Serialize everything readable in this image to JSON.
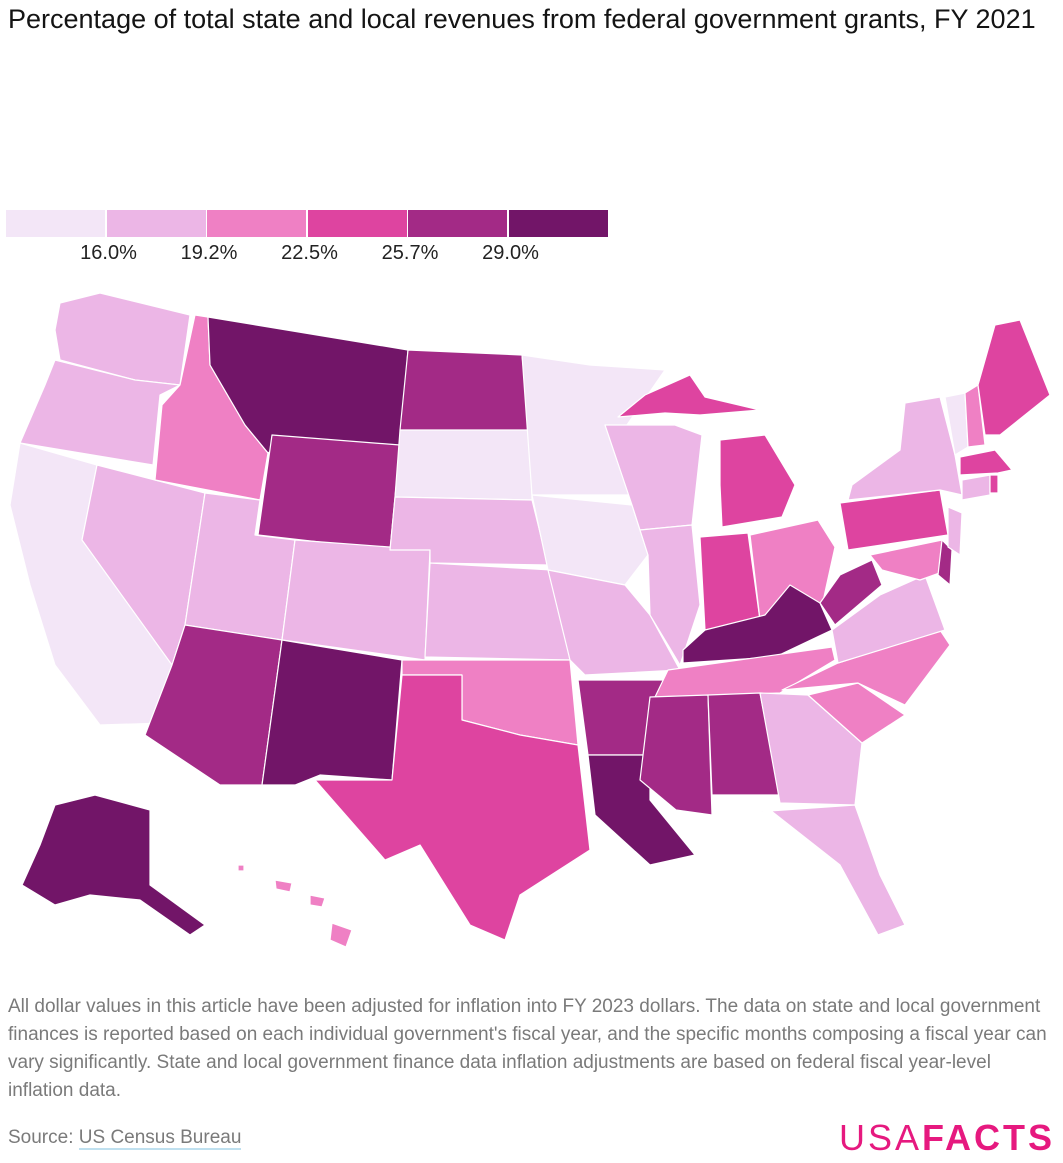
{
  "title": "Percentage of total state and local revenues from federal government grants, FY 2021",
  "legend": {
    "ticks": [
      "16.0%",
      "19.2%",
      "22.5%",
      "25.7%",
      "29.0%"
    ],
    "colors": [
      "#f3e6f7",
      "#ecb6e6",
      "#ef80c4",
      "#de44a0",
      "#a32a86",
      "#721568"
    ]
  },
  "map_data": {
    "type": "choropleth",
    "thresholds": [
      16.0,
      19.2,
      22.5,
      25.7,
      29.0
    ],
    "state_bins": {
      "WA": 1,
      "OR": 1,
      "CA": 0,
      "NV": 1,
      "ID": 2,
      "MT": 5,
      "WY": 4,
      "UT": 1,
      "CO": 1,
      "AZ": 4,
      "NM": 5,
      "ND": 4,
      "SD": 0,
      "NE": 1,
      "KS": 1,
      "OK": 2,
      "TX": 3,
      "MN": 0,
      "IA": 0,
      "MO": 1,
      "AR": 4,
      "LA": 5,
      "WI": 1,
      "IL": 1,
      "MI": 3,
      "IN": 3,
      "OH": 2,
      "KY": 5,
      "TN": 2,
      "MS": 4,
      "AL": 4,
      "GA": 1,
      "FL": 1,
      "SC": 2,
      "NC": 2,
      "VA": 1,
      "WV": 4,
      "MD": 2,
      "DE": 4,
      "PA": 3,
      "NJ": 1,
      "NY": 1,
      "CT": 1,
      "RI": 3,
      "MA": 3,
      "VT": 0,
      "NH": 2,
      "ME": 3,
      "AK": 5,
      "HI": 2
    }
  },
  "footnote": "All dollar values in this article have been adjusted for inflation into FY 2023 dollars. The data on state and local government finances is reported based on each individual government's fiscal year, and the specific months composing a fiscal year can vary significantly. State and local government finance data inflation adjustments are based on federal fiscal year-level inflation data.",
  "source": {
    "prefix": "Source: ",
    "link": "US Census Bureau"
  },
  "logo": {
    "part1": "USA",
    "part2": "FACTS"
  }
}
